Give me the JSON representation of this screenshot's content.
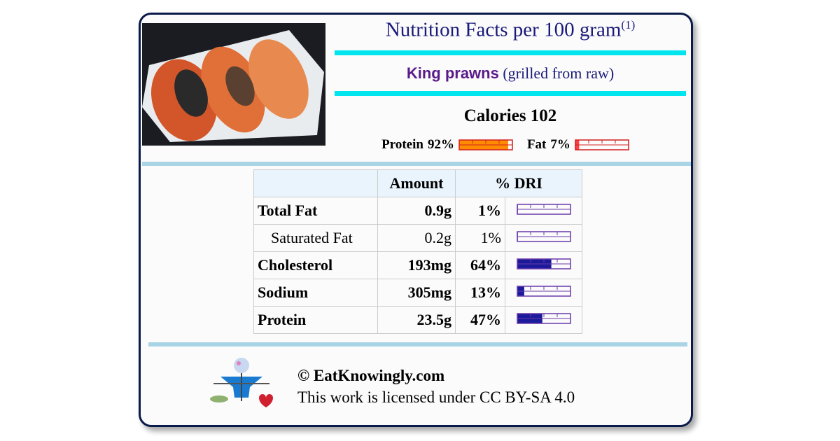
{
  "header": {
    "title": "Nutrition Facts per 100 gram",
    "title_note": "(1)",
    "food_name": "King prawns",
    "food_detail": "(grilled from raw)"
  },
  "calories": {
    "label": "Calories 102"
  },
  "macros": [
    {
      "name": "Protein",
      "percent": 92,
      "percent_label": "92%",
      "color": "#ff8c00"
    },
    {
      "name": "Fat",
      "percent": 7,
      "percent_label": "7%",
      "color": "#ff4040"
    }
  ],
  "table": {
    "headers": [
      "Amount",
      "% DRI"
    ],
    "rows": [
      {
        "nutrient": "Total Fat",
        "amount": "0.9g",
        "dri": 1,
        "dri_label": "1%",
        "bold": true
      },
      {
        "nutrient": "Saturated Fat",
        "amount": "0.2g",
        "dri": 1,
        "dri_label": "1%",
        "bold": false
      },
      {
        "nutrient": "Cholesterol",
        "amount": "193mg",
        "dri": 64,
        "dri_label": "64%",
        "bold": true
      },
      {
        "nutrient": "Sodium",
        "amount": "305mg",
        "dri": 13,
        "dri_label": "13%",
        "bold": true
      },
      {
        "nutrient": "Protein",
        "amount": "23.5g",
        "dri": 47,
        "dri_label": "47%",
        "bold": true
      }
    ]
  },
  "footer": {
    "site": "© EatKnowingly.com",
    "license": "This work is licensed under CC BY-SA 4.0"
  }
}
